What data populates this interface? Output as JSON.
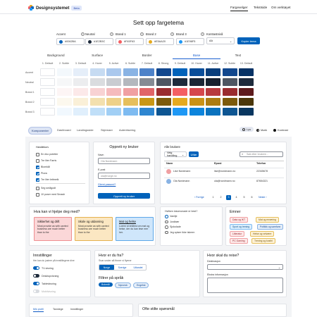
{
  "header": {
    "brand": "Designsystemet",
    "badge": "Beta",
    "nav": [
      "Fargevelger",
      "Tekstside",
      "Om verktøyet"
    ]
  },
  "title": "Sett opp fargetema",
  "inputs": [
    {
      "label": "Accent",
      "value": "#0062BA",
      "color": "#0062ba"
    },
    {
      "label": "Neutral",
      "value": "#1E2B3C",
      "color": "#1e2b3c"
    },
    {
      "label": "Brand 1",
      "value": "#F45F63",
      "color": "#f45f63"
    },
    {
      "label": "Brand 2",
      "value": "#E5AA20",
      "color": "#e5aa20"
    },
    {
      "label": "Brand 3",
      "value": "#1E98F5",
      "color": "#1e98f5"
    }
  ],
  "contrast": {
    "label": "Kontrastnivå",
    "value": "AA"
  },
  "copy_button": "Kopier tema",
  "groups": [
    "Background",
    "Surface",
    "Border",
    "Base",
    "Text"
  ],
  "steps": [
    "1. Default",
    "2. Subtle",
    "3. Default",
    "4. Hover",
    "5. Active",
    "6. Subtle",
    "7. Default",
    "8. Strong",
    "9. Default",
    "10. Hover",
    "11. Active",
    "12. Subtle",
    "13. Default"
  ],
  "rows": [
    {
      "label": "Accent",
      "colors": [
        "#ffffff",
        "#f3f8fc",
        "#e5eef9",
        "#c6dbf2",
        "#aac8ed",
        "#89b3e4",
        "#4d82c9",
        "#11478e",
        "#0062ba",
        "#0a4e9a",
        "#083e7c",
        "#11478e",
        "#073265"
      ]
    },
    {
      "label": "Neutral",
      "colors": [
        "#ffffff",
        "#f6f7f8",
        "#ecedef",
        "#dadcdf",
        "#c9ccd1",
        "#b4b8be",
        "#858b94",
        "#4e5662",
        "#1e2b3c",
        "#1b2635",
        "#16202e",
        "#4e5662",
        "#1e2b3c"
      ]
    },
    {
      "label": "Brand 1",
      "colors": [
        "#ffffff",
        "#fdf5f5",
        "#fce9e9",
        "#f8d2d3",
        "#f5bbbd",
        "#f0a0a2",
        "#e16568",
        "#9a2c2f",
        "#f45f63",
        "#d5474c",
        "#b83a3e",
        "#9a2c2f",
        "#5e1b1d"
      ]
    },
    {
      "label": "Brand 2",
      "colors": [
        "#ffffff",
        "#fcf8ee",
        "#faf0d8",
        "#f3e0ae",
        "#eed189",
        "#e6bf5c",
        "#c99715",
        "#7c5a0b",
        "#e5aa20",
        "#c99216",
        "#ac7c11",
        "#7c5a0b",
        "#4b370a"
      ]
    },
    {
      "label": "Brand 3",
      "colors": [
        "#ffffff",
        "#f1f8fe",
        "#e0effc",
        "#c0dff8",
        "#a1cff5",
        "#7ebbf1",
        "#2e86d0",
        "#0d5592",
        "#1e98f5",
        "#0c84dc",
        "#0a72be",
        "#0d5592",
        "#083660"
      ]
    }
  ],
  "preview_tabs": [
    "Komponenter",
    "Dashboard",
    "Landingsside",
    "Skjemaer",
    "Autentisering"
  ],
  "modes": [
    "Lys",
    "Mørk",
    "Kontrast"
  ],
  "handlekurv": {
    "title": "Handlekurv",
    "items": [
      {
        "label": "En eko potetter",
        "checked": false
      },
      {
        "label": "Tre liter Farris",
        "checked": false
      },
      {
        "label": "Blomkål",
        "checked": true
      },
      {
        "label": "Pizza",
        "checked": true
      },
      {
        "label": "Tre liter lettmelk",
        "checked": true
      },
      {
        "label": "Seg smågodt",
        "checked": false
      },
      {
        "label": "10 poser med Smash",
        "checked": false
      }
    ]
  },
  "opprett": {
    "title": "Opprett ny bruker",
    "name_label": "Navn",
    "name_ph": "Ola Nordmann",
    "email_label": "E-post",
    "email_ph": "ola@norge.no",
    "link": "Glemt passord?",
    "button": "Opprett ny bruker"
  },
  "brukere": {
    "title": "Alle brukere",
    "action": "Velg handling",
    "button": "Utfør",
    "search_ph": "Søk etter brukere...",
    "cols": [
      "Navn",
      "Epost",
      "Telefon"
    ],
    "rows": [
      {
        "name": "Lise Nordmann",
        "email": "lise@nordmann.no",
        "phone": "22345678"
      },
      {
        "name": "Ola Nordmann",
        "email": "ola@nordmann.no",
        "phone": "87654321"
      }
    ],
    "prev": "Forrige",
    "next": "Neste",
    "pages": [
      "1",
      "2",
      "3",
      "4",
      "5",
      "6"
    ],
    "current": "3"
  },
  "hjelp": {
    "title": "Hva kan vi hjelpe deg med?",
    "boxes": [
      {
        "title": "Sikkerhet og drift",
        "body": "Most provide as with carried business are much better than to the",
        "bg": "#fbd7d8",
        "border": "#ef8e91"
      },
      {
        "title": "Skole og utdanning",
        "body": "Most provide as with carried business are much better than to the",
        "bg": "#fbe7c2",
        "border": "#e5b24f"
      },
      {
        "title": "Mat og helse",
        "body": "Lorem id enlitest om mat og helse, der du kan lese mer her.",
        "bg": "#cfe6fb",
        "border": "#5da7e8"
      }
    ]
  },
  "kaffe": {
    "title": "Hvilken lokomonade er best?",
    "options": [
      {
        "label": "Vanilje",
        "on": true
      },
      {
        "label": "Jordbær",
        "on": false
      },
      {
        "label": "Sjokolade",
        "on": false
      },
      {
        "label": "Jeg spiser ikke iskrem",
        "on": false
      }
    ]
  },
  "emner": {
    "title": "Emner",
    "chips": [
      {
        "label": "Data og IKT",
        "bg": "#fde8e8",
        "fg": "#9a2c2f",
        "bd": "#f0a0a2"
      },
      {
        "label": "Mat og ernæring",
        "bg": "#fdf1d6",
        "fg": "#7c5a0b",
        "bd": "#e6bf5c"
      },
      {
        "label": "Sport og trening",
        "bg": "#dceefc",
        "fg": "#0d5592",
        "bd": "#7ebbf1"
      },
      {
        "label": "Politikk og samfunn",
        "bg": "#e5eef9",
        "fg": "#11478e",
        "bd": "#89b3e4"
      },
      {
        "label": "Litteratur",
        "bg": "#fde8e8",
        "fg": "#9a2c2f",
        "bd": "#f0a0a2"
      },
      {
        "label": "Helse og velvære",
        "bg": "#fdf1d6",
        "fg": "#7c5a0b",
        "bd": "#e6bf5c"
      },
      {
        "label": "PC Gaming",
        "bg": "#fde8e8",
        "fg": "#9a2c2f",
        "bd": "#f0a0a2"
      },
      {
        "label": "Trening og kosthl",
        "bg": "#fdf1d6",
        "fg": "#7c5a0b",
        "bd": "#e6bf5c"
      }
    ]
  },
  "innstillinger": {
    "title": "Innstillinger",
    "sub": "Her kan du justere på innstillingene dine",
    "items": [
      {
        "label": "TV-visning",
        "on": true
      },
      {
        "label": "Desktopvisning",
        "on": false
      },
      {
        "label": "Tabletvisning",
        "on": true
      },
      {
        "label": "Mobilvisning",
        "on": false
      }
    ]
  },
  "dutur": {
    "title": "Hvor er du fra?",
    "sub": "Svar under så finner vi flyene",
    "segments": [
      "Norge",
      "Sverige",
      "Utlandet"
    ],
    "filter_title": "Filtrer på språk",
    "pills": [
      "Bokmål",
      "Nynorsk",
      "Engelsk"
    ]
  },
  "reise": {
    "title": "Hvor skal du reise?",
    "dest_label": "Destinasjon",
    "extra_label": "Ekstra informasjon"
  },
  "bottom_tabs": [
    "Min profil",
    "Tannlege",
    "Innstillinger"
  ],
  "faq": {
    "title": "Ofte stilte spørsmål"
  }
}
